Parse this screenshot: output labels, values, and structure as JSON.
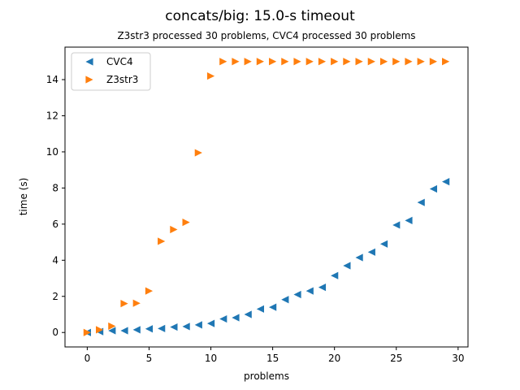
{
  "chart_data": {
    "type": "scatter",
    "title": "concats/big: 15.0-s timeout",
    "subtitle": "Z3str3 processed 30 problems, CVC4 processed 30 problems",
    "xlabel": "problems",
    "ylabel": "time (s)",
    "xlim": [
      -1.8,
      30.8
    ],
    "ylim": [
      -0.8,
      15.8
    ],
    "xticks": [
      0,
      5,
      10,
      15,
      20,
      25,
      30
    ],
    "yticks": [
      0,
      2,
      4,
      6,
      8,
      10,
      12,
      14
    ],
    "legend_position": "top-left",
    "series": [
      {
        "name": "CVC4",
        "marker": "triangle-left",
        "color": "#1f77b4",
        "x": [
          0,
          1,
          2,
          3,
          4,
          5,
          6,
          7,
          8,
          9,
          10,
          11,
          12,
          13,
          14,
          15,
          16,
          17,
          18,
          19,
          20,
          21,
          22,
          23,
          24,
          25,
          26,
          27,
          28,
          29
        ],
        "y": [
          0.0,
          0.05,
          0.1,
          0.1,
          0.15,
          0.2,
          0.22,
          0.3,
          0.33,
          0.42,
          0.5,
          0.75,
          0.82,
          1.0,
          1.3,
          1.4,
          1.82,
          2.1,
          2.3,
          2.5,
          3.15,
          3.7,
          4.15,
          4.45,
          4.9,
          5.95,
          6.2,
          7.2,
          7.95,
          8.35
        ]
      },
      {
        "name": "Z3str3",
        "marker": "triangle-right",
        "color": "#ff7f0e",
        "x": [
          0,
          1,
          2,
          3,
          4,
          5,
          6,
          7,
          8,
          9,
          10,
          11,
          12,
          13,
          14,
          15,
          16,
          17,
          18,
          19,
          20,
          21,
          22,
          23,
          24,
          25,
          26,
          27,
          28,
          29
        ],
        "y": [
          0.0,
          0.15,
          0.35,
          1.6,
          1.62,
          2.3,
          5.05,
          5.7,
          6.1,
          9.95,
          14.2,
          15.0,
          15.0,
          15.0,
          15.0,
          15.0,
          15.0,
          15.0,
          15.0,
          15.0,
          15.0,
          15.0,
          15.0,
          15.0,
          15.0,
          15.0,
          15.0,
          15.0,
          15.0,
          15.0
        ]
      }
    ]
  }
}
